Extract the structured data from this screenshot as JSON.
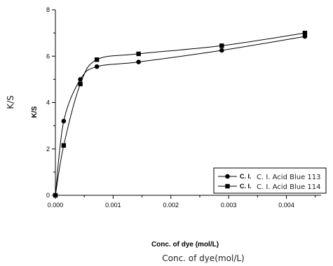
{
  "chart_data": {
    "type": "line",
    "xlabel": "Conc. of dye (mol/L)",
    "xlabel_alt": "Conc. of dye(mol/L)",
    "ylabel": "K/S",
    "ylabel_alt": "K/S",
    "xlim": [
      0,
      0.0046
    ],
    "ylim": [
      0,
      8
    ],
    "x_ticks": [
      "0.000",
      "0.001",
      "0.002",
      "0.003",
      "0.004"
    ],
    "y_ticks": [
      "0",
      "2",
      "4",
      "6",
      "8"
    ],
    "grid": false,
    "legend_position": "lower-right",
    "series": [
      {
        "name": "C. I. Acid Blue 113",
        "legend_short": "C. I. ",
        "legend_rest": "C. I. Acid Blue 113",
        "marker": "circle",
        "x": [
          0,
          0.000144,
          0.000432,
          0.000718,
          0.00144,
          0.00288,
          0.00432
        ],
        "y": [
          0.0,
          3.2,
          5.0,
          5.55,
          5.75,
          6.25,
          6.85
        ]
      },
      {
        "name": "C. I. Acid Blue 114",
        "legend_short": "C. I. ",
        "legend_rest": "C. I. Acid Blue 114",
        "marker": "square",
        "x": [
          0,
          0.000144,
          0.000432,
          0.000718,
          0.00144,
          0.00288,
          0.00432
        ],
        "y": [
          0.0,
          2.15,
          4.8,
          5.85,
          6.1,
          6.45,
          7.0
        ]
      }
    ]
  }
}
